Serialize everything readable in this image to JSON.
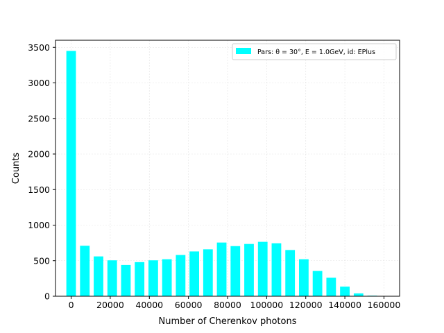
{
  "chart_data": {
    "type": "bar",
    "xlabel": "Number of Cherenkov photons",
    "ylabel": "Counts",
    "xlim": [
      -8000,
      168000
    ],
    "ylim": [
      0,
      3600
    ],
    "xticks": [
      0,
      20000,
      40000,
      60000,
      80000,
      100000,
      120000,
      140000,
      160000
    ],
    "xtick_labels": [
      "0",
      "20000",
      "40000",
      "60000",
      "80000",
      "100000",
      "120000",
      "140000",
      "160000"
    ],
    "yticks": [
      0,
      500,
      1000,
      1500,
      2000,
      2500,
      3000,
      3500
    ],
    "ytick_labels": [
      "0",
      "500",
      "1000",
      "1500",
      "2000",
      "2500",
      "3000",
      "3500"
    ],
    "grid": true,
    "legend_position": "top-right",
    "bar_color": "#00ffff",
    "legend_label": "Pars: θ = 30°, E = 1.0GeV, id: EPlus",
    "bin_width": 7000,
    "x": [
      0,
      7000,
      14000,
      21000,
      28000,
      35000,
      42000,
      49000,
      56000,
      63000,
      70000,
      77000,
      84000,
      91000,
      98000,
      105000,
      112000,
      119000,
      126000,
      133000,
      140000,
      147000,
      154000,
      161000
    ],
    "values": [
      3450,
      710,
      560,
      505,
      440,
      480,
      505,
      520,
      580,
      630,
      660,
      755,
      705,
      735,
      765,
      745,
      650,
      520,
      355,
      260,
      135,
      40,
      8,
      0
    ]
  }
}
